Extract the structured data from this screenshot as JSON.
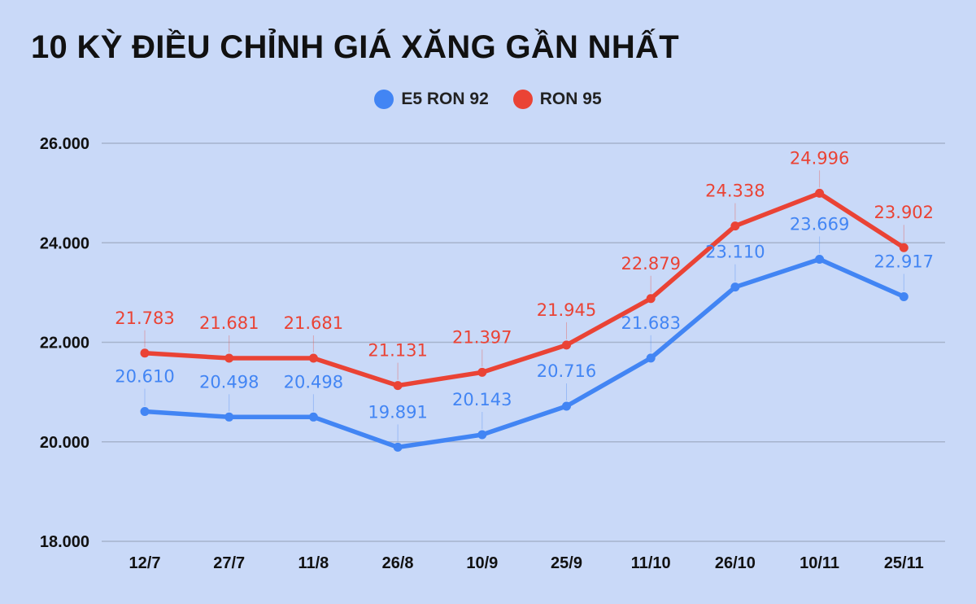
{
  "chart_data": {
    "type": "line",
    "title": "10 KỲ ĐIỀU CHỈNH GIÁ XĂNG GẦN NHẤT",
    "xlabel": "",
    "ylabel": "",
    "categories": [
      "12/7",
      "27/7",
      "11/8",
      "26/8",
      "10/9",
      "25/9",
      "11/10",
      "26/10",
      "10/11",
      "25/11"
    ],
    "ylim": [
      18000,
      26000
    ],
    "yticks": [
      18000,
      20000,
      22000,
      24000,
      26000
    ],
    "ytick_labels": [
      "18.000",
      "20.000",
      "22.000",
      "24.000",
      "26.000"
    ],
    "grid": true,
    "legend_position": "top-center",
    "series": [
      {
        "name": "E5 RON 92",
        "color": "#4285f4",
        "values": [
          20610,
          20498,
          20498,
          19891,
          20143,
          20716,
          21683,
          23110,
          23669,
          22917
        ],
        "labels": [
          "20.610",
          "20.498",
          "20.498",
          "19.891",
          "20.143",
          "20.716",
          "21.683",
          "23.110",
          "23.669",
          "22.917"
        ]
      },
      {
        "name": "RON 95",
        "color": "#ea4335",
        "values": [
          21783,
          21681,
          21681,
          21131,
          21397,
          21945,
          22879,
          24338,
          24996,
          23902
        ],
        "labels": [
          "21.783",
          "21.681",
          "21.681",
          "21.131",
          "21.397",
          "21.945",
          "22.879",
          "24.338",
          "24.996",
          "23.902"
        ]
      }
    ]
  },
  "colors": {
    "background": "#c9d9f8",
    "gridline": "#a6b3cc",
    "e5_ron92": "#4285f4",
    "ron95": "#ea4335"
  }
}
